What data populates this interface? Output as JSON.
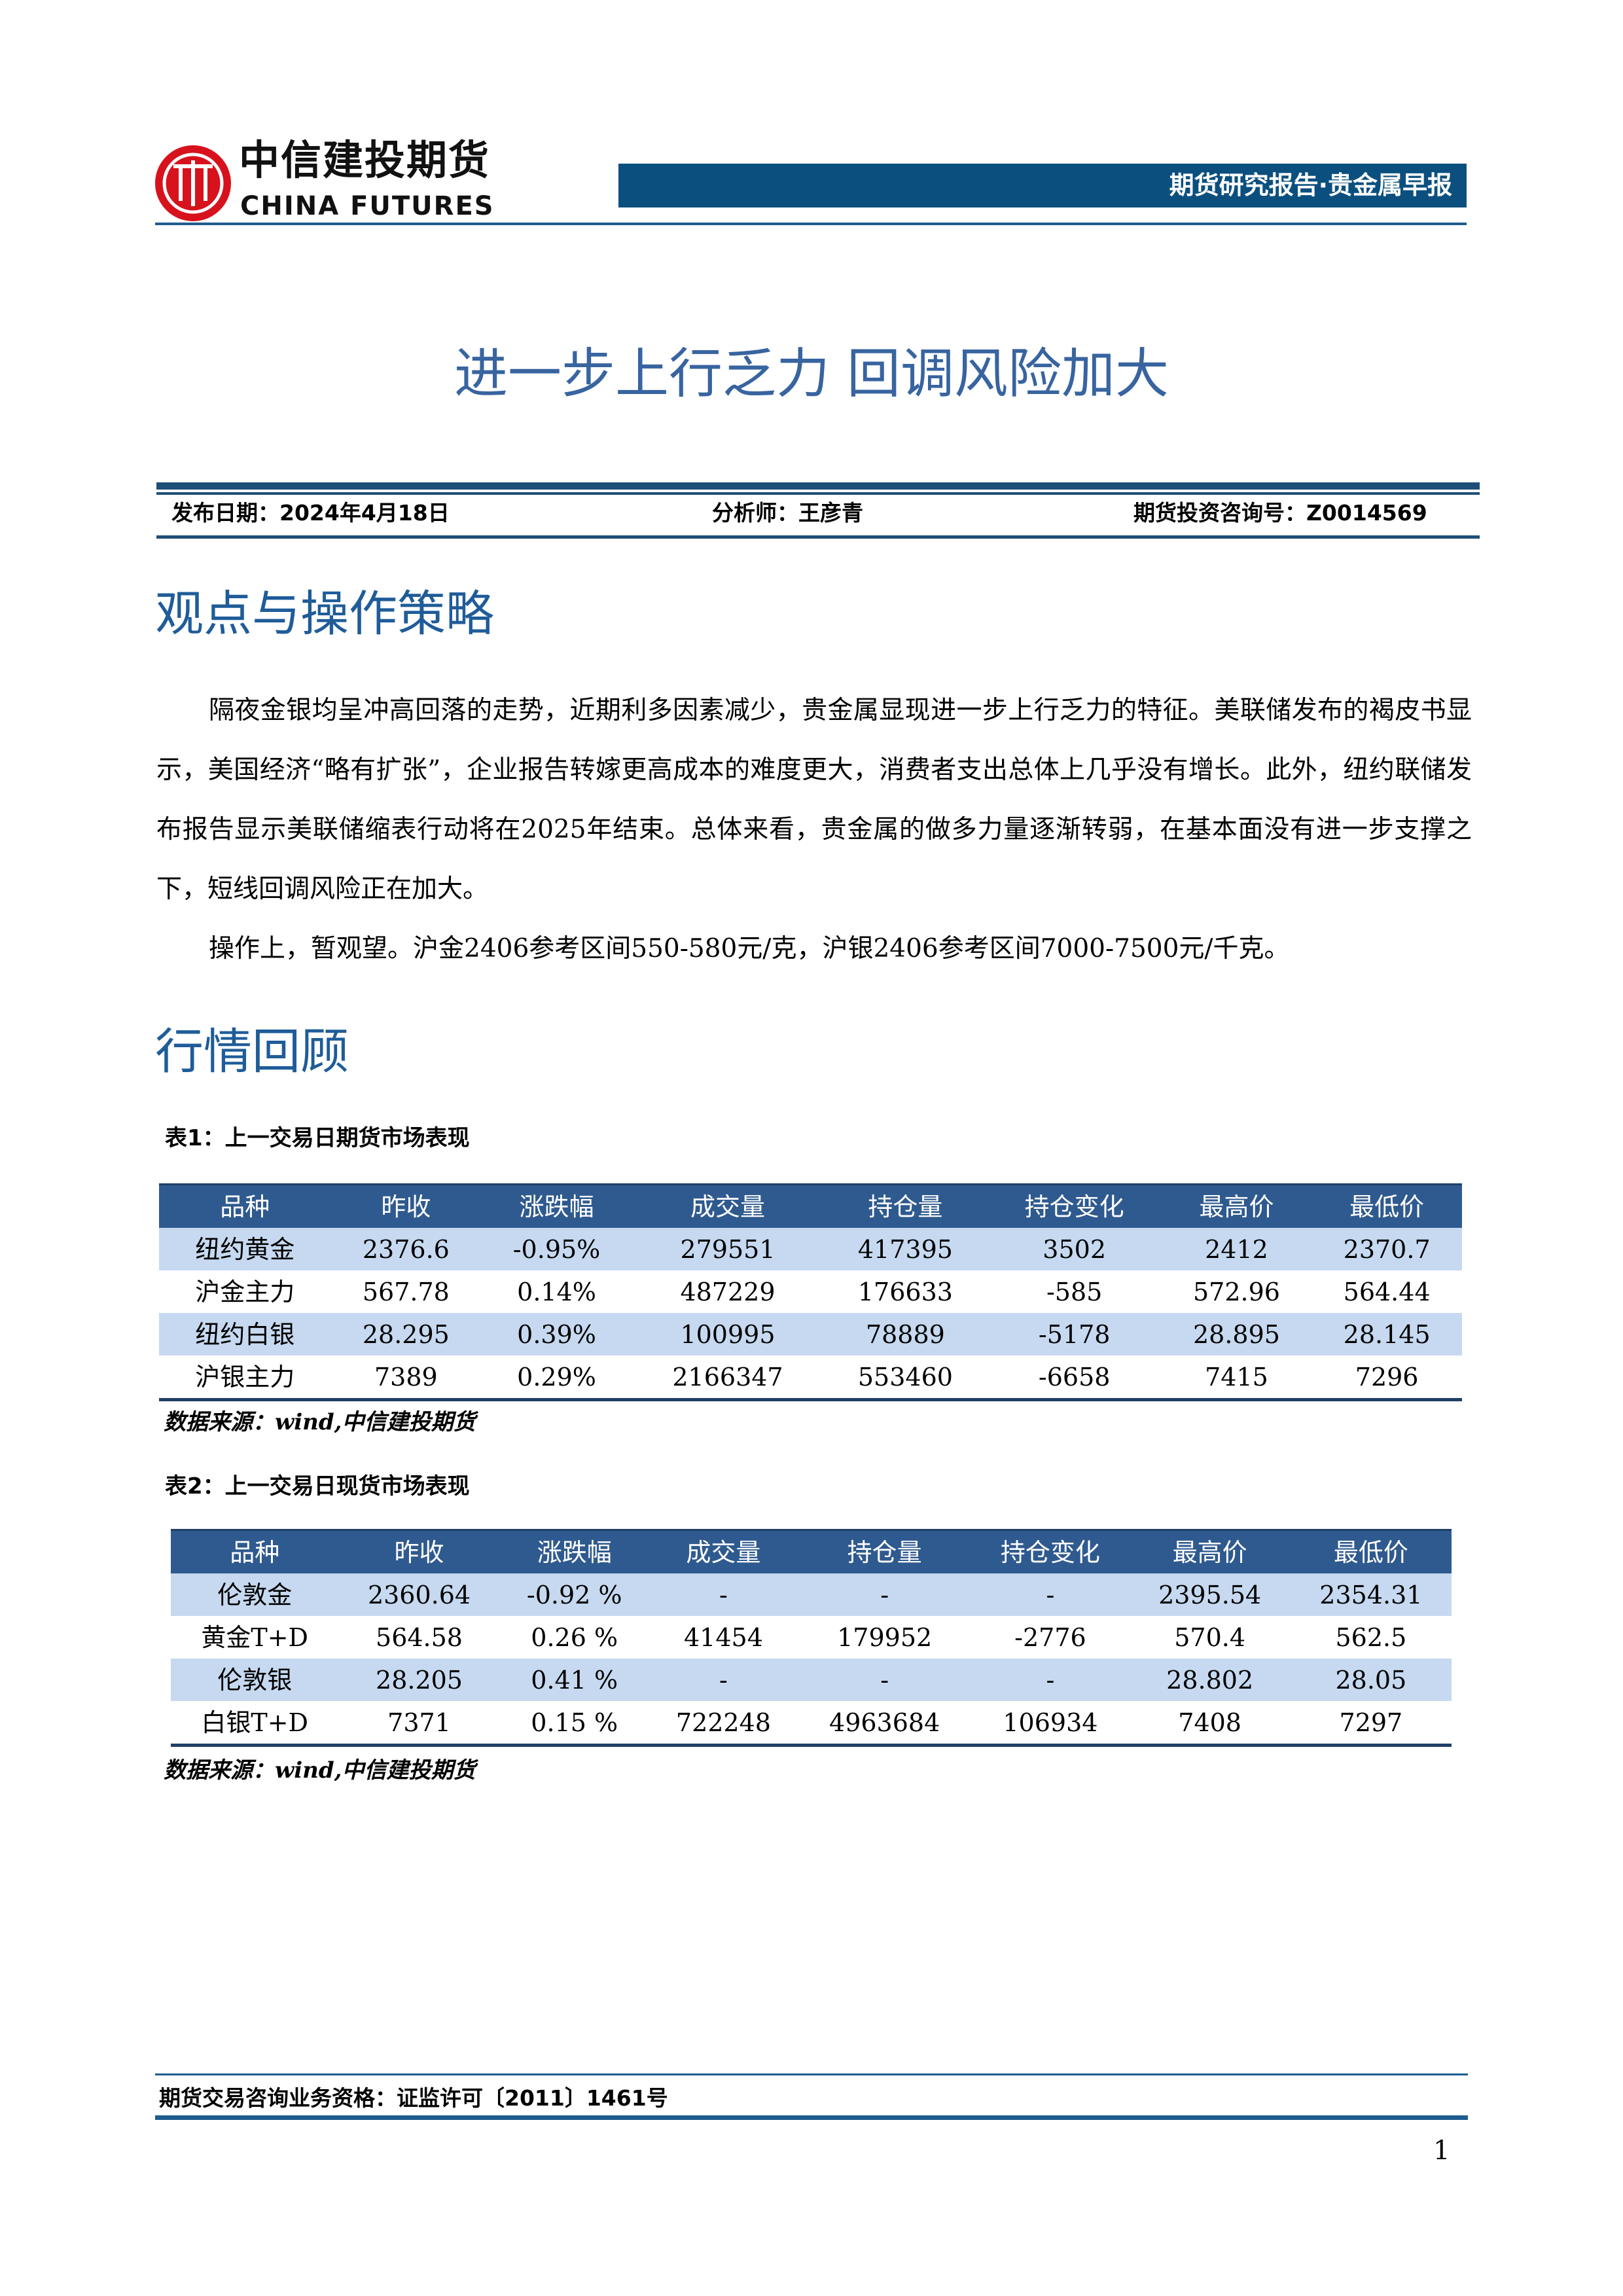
{
  "header": {
    "logo_cn": "中信建投期货",
    "logo_en": "CHINA FUTURES",
    "report_type": "期货研究报告·贵金属早报"
  },
  "title": "进一步上行乏力 回调风险加大",
  "info": {
    "date": "发布日期：2024年4月18日",
    "analyst": "分析师：王彦青",
    "license": "期货投资咨询号：Z0014569"
  },
  "section1": {
    "heading": "观点与操作策略",
    "paragraphs": [
      "隔夜金银均呈冲高回落的走势，近期利多因素减少，贵金属显现进一步上行乏力的特征。美联储发布的褐皮书显示，美国经济“略有扩张”，企业报告转嫁更高成本的难度更大，消费者支出总体上几乎没有增长。此外，纽约联储发布报告显示美联储缩表行动将在2025年结束。总体来看，贵金属的做多力量逐渐转弱，在基本面没有进一步支撑之下，短线回调风险正在加大。",
      "操作上，暂观望。沪金2406参考区间550-580元/克，沪银2406参考区间7000-7500元/千克。"
    ]
  },
  "section2": {
    "heading": "行情回顾",
    "table1": {
      "caption": "表1：上一交易日期货市场表现",
      "columns": [
        "品种",
        "昨收",
        "涨跌幅",
        "成交量",
        "持仓量",
        "持仓变化",
        "最高价",
        "最低价"
      ],
      "rows": [
        [
          "纽约黄金",
          "2376.6",
          "-0.95%",
          "279551",
          "417395",
          "3502",
          "2412",
          "2370.7"
        ],
        [
          "沪金主力",
          "567.78",
          "0.14%",
          "487229",
          "176633",
          "-585",
          "572.96",
          "564.44"
        ],
        [
          "纽约白银",
          "28.295",
          "0.39%",
          "100995",
          "78889",
          "-5178",
          "28.895",
          "28.145"
        ],
        [
          "沪银主力",
          "7389",
          "0.29%",
          "2166347",
          "553460",
          "-6658",
          "7415",
          "7296"
        ]
      ],
      "source": "数据来源：wind,中信建投期货"
    },
    "table2": {
      "caption": "表2：上一交易日现货市场表现",
      "columns": [
        "品种",
        "昨收",
        "涨跌幅",
        "成交量",
        "持仓量",
        "持仓变化",
        "最高价",
        "最低价"
      ],
      "rows": [
        [
          "伦敦金",
          "2360.64",
          "-0.92 %",
          "-",
          "-",
          "-",
          "2395.54",
          "2354.31"
        ],
        [
          "黄金T+D",
          "564.58",
          "0.26 %",
          "41454",
          "179952",
          "-2776",
          "570.4",
          "562.5"
        ],
        [
          "伦敦银",
          "28.205",
          "0.41 %",
          "-",
          "-",
          "-",
          "28.802",
          "28.05"
        ],
        [
          "白银T+D",
          "7371",
          "0.15 %",
          "722248",
          "4963684",
          "106934",
          "7408",
          "7297"
        ]
      ],
      "source": "数据来源：wind,中信建投期货"
    }
  },
  "footer": {
    "qualification": "期货交易咨询业务资格：证监许可〔2011〕1461号",
    "page_number": "1"
  },
  "colors": {
    "brand_blue": "#0b4f7f",
    "title_blue": "#3864a0",
    "table_header": "#2f5a8f",
    "row_alt": "#c6d9f0",
    "logo_red": "#d7121d"
  }
}
